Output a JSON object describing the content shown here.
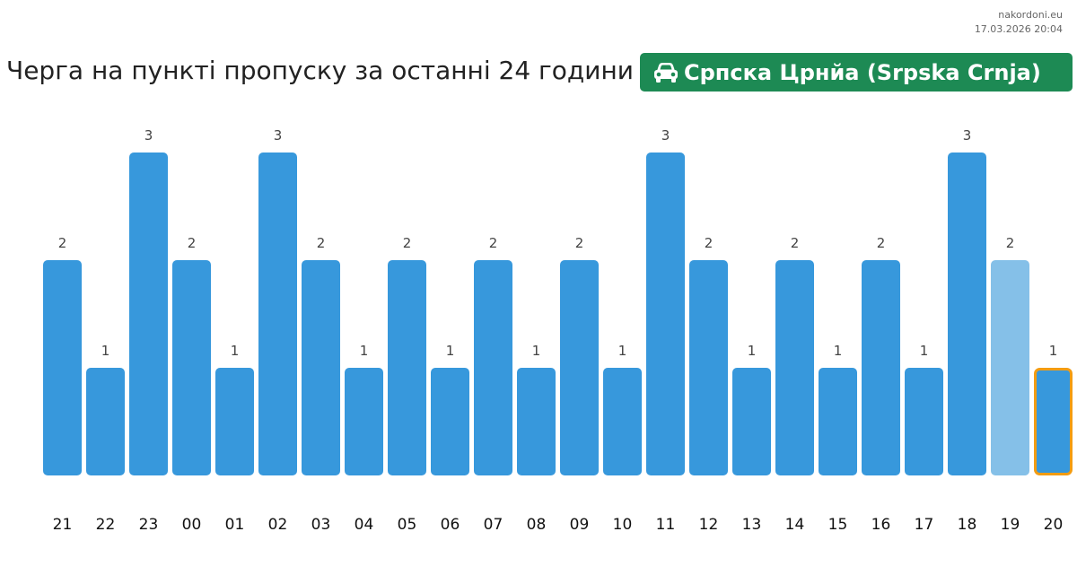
{
  "watermark": {
    "site": "nakordoni.eu",
    "datetime": "17.03.2026 20:04"
  },
  "header": {
    "title": "Черга на пункті пропуску за останні 24 години",
    "badge_icon": "car-icon",
    "badge_label": "Српска Црнйа (Srpska Crnja)",
    "badge_color": "#1d8a54"
  },
  "chart_data": {
    "type": "bar",
    "categories": [
      "21",
      "22",
      "23",
      "00",
      "01",
      "02",
      "03",
      "04",
      "05",
      "06",
      "07",
      "08",
      "09",
      "10",
      "11",
      "12",
      "13",
      "14",
      "15",
      "16",
      "17",
      "18",
      "19",
      "20"
    ],
    "values": [
      2,
      1,
      3,
      2,
      1,
      3,
      2,
      1,
      2,
      1,
      2,
      1,
      2,
      1,
      3,
      2,
      1,
      2,
      1,
      2,
      1,
      3,
      2,
      1
    ],
    "ylim": [
      0,
      3
    ],
    "grid": false,
    "legend": "none",
    "colors": {
      "bar": "#3798dc",
      "bar_previous": "#85c0e8",
      "current_outline": "#f39c12"
    },
    "highlight": {
      "faded_category": "19",
      "current_category": "20"
    }
  }
}
